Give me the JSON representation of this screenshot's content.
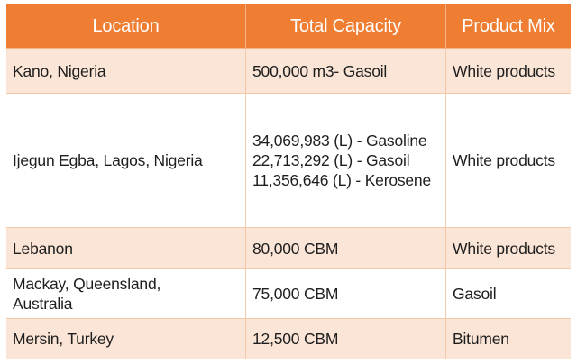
{
  "header": {
    "location": "Location",
    "capacity": "Total Capacity",
    "product_mix": "Product Mix"
  },
  "rows": [
    {
      "location": [
        "Kano, Nigeria"
      ],
      "capacity": [
        "500,000 m3- Gasoil"
      ],
      "product_mix": "White products"
    },
    {
      "location": [
        "Ijegun Egba, Lagos, Nigeria"
      ],
      "capacity": [
        "34,069,983 (L) - Gasoline",
        "22,713,292 (L) - Gasoil",
        "11,356,646 (L) - Kerosene"
      ],
      "product_mix": "White products"
    },
    {
      "location": [
        "Lebanon"
      ],
      "capacity": [
        "80,000 CBM"
      ],
      "product_mix": "White products"
    },
    {
      "location": [
        "Mackay, Queensland,",
        "Australia"
      ],
      "capacity": [
        "75,000 CBM"
      ],
      "product_mix": "Gasoil"
    },
    {
      "location": [
        "Mersin, Turkey"
      ],
      "capacity": [
        "12,500 CBM"
      ],
      "product_mix": "Bitumen"
    }
  ],
  "colors": {
    "header_bg": "#ef7d32",
    "row_alt_bg": "#fbe5d6",
    "row_plain_bg": "#ffffff",
    "text": "#1e1e1e"
  }
}
